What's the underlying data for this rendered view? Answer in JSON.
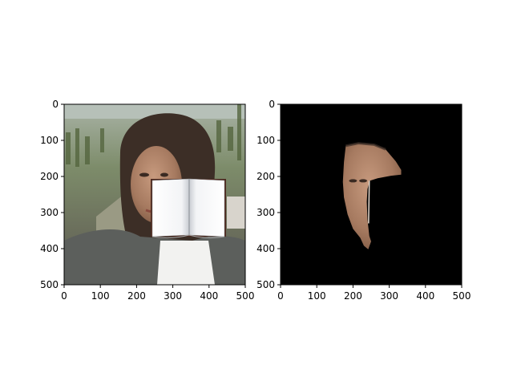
{
  "chart_data": [
    {
      "type": "image",
      "image": "face photo occluded by open book",
      "xlim": [
        0,
        500
      ],
      "ylim": [
        500,
        0
      ],
      "xticks": [
        0,
        100,
        200,
        300,
        400,
        500
      ],
      "yticks": [
        0,
        100,
        200,
        300,
        400,
        500
      ],
      "xtick_labels": [
        "0",
        "100",
        "200",
        "300",
        "400",
        "500"
      ],
      "ytick_labels": [
        "0",
        "100",
        "200",
        "300",
        "400",
        "500"
      ],
      "occluder": {
        "x": [
          243,
          443
        ],
        "y": [
          210,
          365
        ]
      }
    },
    {
      "type": "image",
      "image": "segmentation mask of visible face region on black background",
      "xlim": [
        0,
        500
      ],
      "ylim": [
        500,
        0
      ],
      "xticks": [
        0,
        100,
        200,
        300,
        400,
        500
      ],
      "yticks": [
        0,
        100,
        200,
        300,
        400,
        500
      ],
      "xtick_labels": [
        "0",
        "100",
        "200",
        "300",
        "400",
        "500"
      ],
      "ytick_labels": [
        "0",
        "100",
        "200",
        "300",
        "400",
        "500"
      ],
      "face_region_outline": [
        [
          180,
          115
        ],
        [
          215,
          108
        ],
        [
          258,
          112
        ],
        [
          290,
          125
        ],
        [
          318,
          158
        ],
        [
          333,
          182
        ],
        [
          333,
          195
        ],
        [
          305,
          198
        ],
        [
          268,
          205
        ],
        [
          246,
          212
        ],
        [
          240,
          235
        ],
        [
          238,
          270
        ],
        [
          240,
          320
        ],
        [
          245,
          365
        ],
        [
          250,
          380
        ],
        [
          242,
          402
        ],
        [
          230,
          392
        ],
        [
          220,
          370
        ],
        [
          200,
          345
        ],
        [
          185,
          305
        ],
        [
          175,
          258
        ],
        [
          172,
          215
        ],
        [
          175,
          160
        ]
      ]
    }
  ]
}
